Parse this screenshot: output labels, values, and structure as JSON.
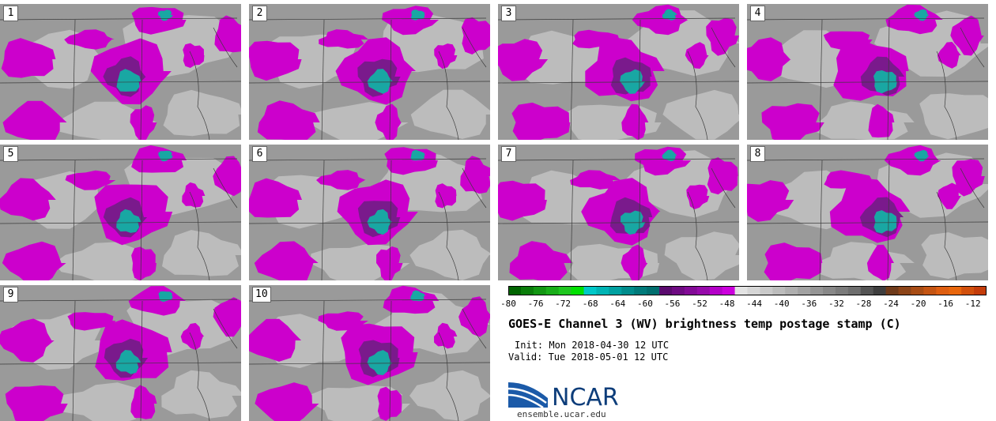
{
  "figure": {
    "title": "GOES-E Channel 3 (WV) brightness temp postage stamp (C)",
    "init_text": "Init: Mon 2018-04-30 12 UTC",
    "valid_text": "Valid: Tue 2018-05-01 12 UTC",
    "logo_text": "NCAR",
    "site": "ensemble.ucar.edu"
  },
  "panels": [
    {
      "label": "1"
    },
    {
      "label": "2"
    },
    {
      "label": "3"
    },
    {
      "label": "4"
    },
    {
      "label": "5"
    },
    {
      "label": "6"
    },
    {
      "label": "7"
    },
    {
      "label": "8"
    },
    {
      "label": "9"
    },
    {
      "label": "10"
    }
  ],
  "colorbar": {
    "min": -80,
    "max": -10,
    "tick_labels": [
      "-80",
      "-76",
      "-72",
      "-68",
      "-64",
      "-60",
      "-56",
      "-52",
      "-48",
      "-44",
      "-40",
      "-36",
      "-32",
      "-28",
      "-24",
      "-20",
      "-16",
      "-12"
    ],
    "bin_colors": [
      "#006400",
      "#0a7d0a",
      "#129612",
      "#19ad19",
      "#1fc61f",
      "#00e000",
      "#00c8c8",
      "#00b4b4",
      "#00a0a0",
      "#008c8c",
      "#007a7a",
      "#006e6e",
      "#5a0a6e",
      "#6e0a82",
      "#820a96",
      "#960aaa",
      "#b400c8",
      "#cc00dd",
      "#e3e3e3",
      "#d6d6d6",
      "#c9c9c9",
      "#bcbcbc",
      "#afafaf",
      "#a2a2a2",
      "#959595",
      "#888888",
      "#7b7b7b",
      "#6e6e6e",
      "#545454",
      "#3e3e3e",
      "#6e3a1a",
      "#8c4418",
      "#a84c14",
      "#c45412",
      "#de5e10",
      "#e8660c",
      "#d2500c",
      "#c43c0a"
    ]
  },
  "colors": {
    "bg_gray": "#9a9a9a",
    "light_gray": "#c4c4c4",
    "magenta": "#cc00cc",
    "cyan": "#19a7a3",
    "deep_purple": "#7a1a8c"
  }
}
